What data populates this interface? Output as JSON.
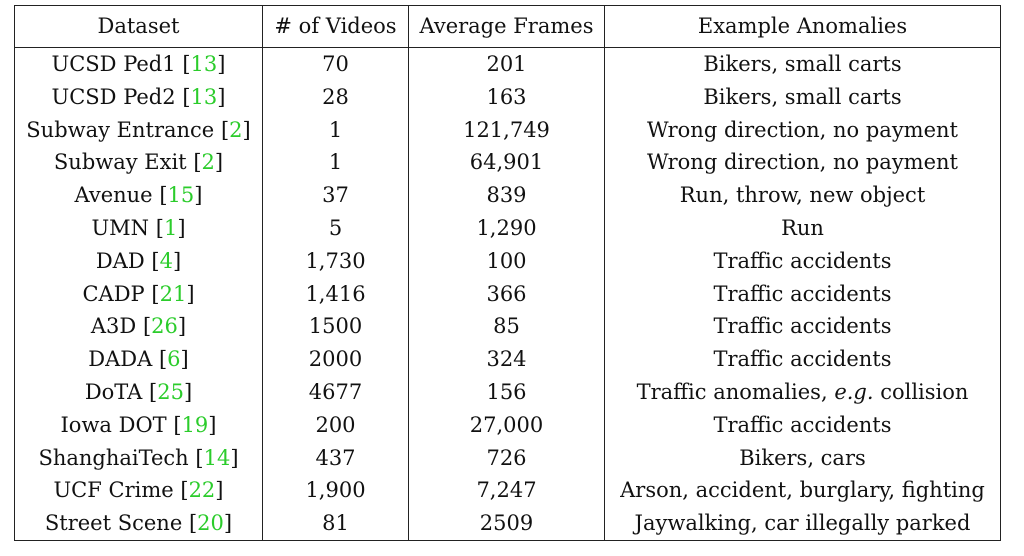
{
  "headers": [
    "Dataset",
    "# of Videos",
    "Average Frames",
    "Example Anomalies"
  ],
  "rows": [
    {
      "name": "UCSD Ped1",
      "ref": "13",
      "videos": "70",
      "frames": "201",
      "anom": "Bikers, small carts"
    },
    {
      "name": "UCSD Ped2",
      "ref": "13",
      "videos": "28",
      "frames": "163",
      "anom": "Bikers, small carts"
    },
    {
      "name": "Subway Entrance",
      "ref": "2",
      "videos": "1",
      "frames": "121,749",
      "anom": "Wrong direction, no payment"
    },
    {
      "name": "Subway Exit",
      "ref": "2",
      "videos": "1",
      "frames": "64,901",
      "anom": "Wrong direction, no payment"
    },
    {
      "name": "Avenue",
      "ref": "15",
      "videos": "37",
      "frames": "839",
      "anom": "Run, throw, new object"
    },
    {
      "name": "UMN",
      "ref": "1",
      "videos": "5",
      "frames": "1,290",
      "anom": "Run"
    },
    {
      "name": "DAD",
      "ref": "4",
      "videos": "1,730",
      "frames": "100",
      "anom": "Traffic accidents"
    },
    {
      "name": "CADP",
      "ref": "21",
      "videos": "1,416",
      "frames": "366",
      "anom": "Traffic accidents"
    },
    {
      "name": "A3D",
      "ref": "26",
      "videos": "1500",
      "frames": "85",
      "anom": "Traffic accidents"
    },
    {
      "name": "DADA",
      "ref": "6",
      "videos": "2000",
      "frames": "324",
      "anom": "Traffic accidents"
    },
    {
      "name": "DoTA",
      "ref": "25",
      "videos": "4677",
      "frames": "156",
      "anom": "Traffic anomalies, ",
      "anom_it": "e.g.",
      "anom_tail": " collision"
    },
    {
      "name": "Iowa DOT",
      "ref": "19",
      "videos": "200",
      "frames": "27,000",
      "anom": "Traffic accidents"
    },
    {
      "name": "ShanghaiTech",
      "ref": "14",
      "videos": "437",
      "frames": "726",
      "anom": "Bikers, cars"
    },
    {
      "name": "UCF Crime",
      "ref": "22",
      "videos": "1,900",
      "frames": "7,247",
      "anom": "Arson, accident, burglary, fighting"
    },
    {
      "name": "Street Scene",
      "ref": "20",
      "videos": "81",
      "frames": "2509",
      "anom": "Jaywalking, car illegally parked"
    }
  ]
}
